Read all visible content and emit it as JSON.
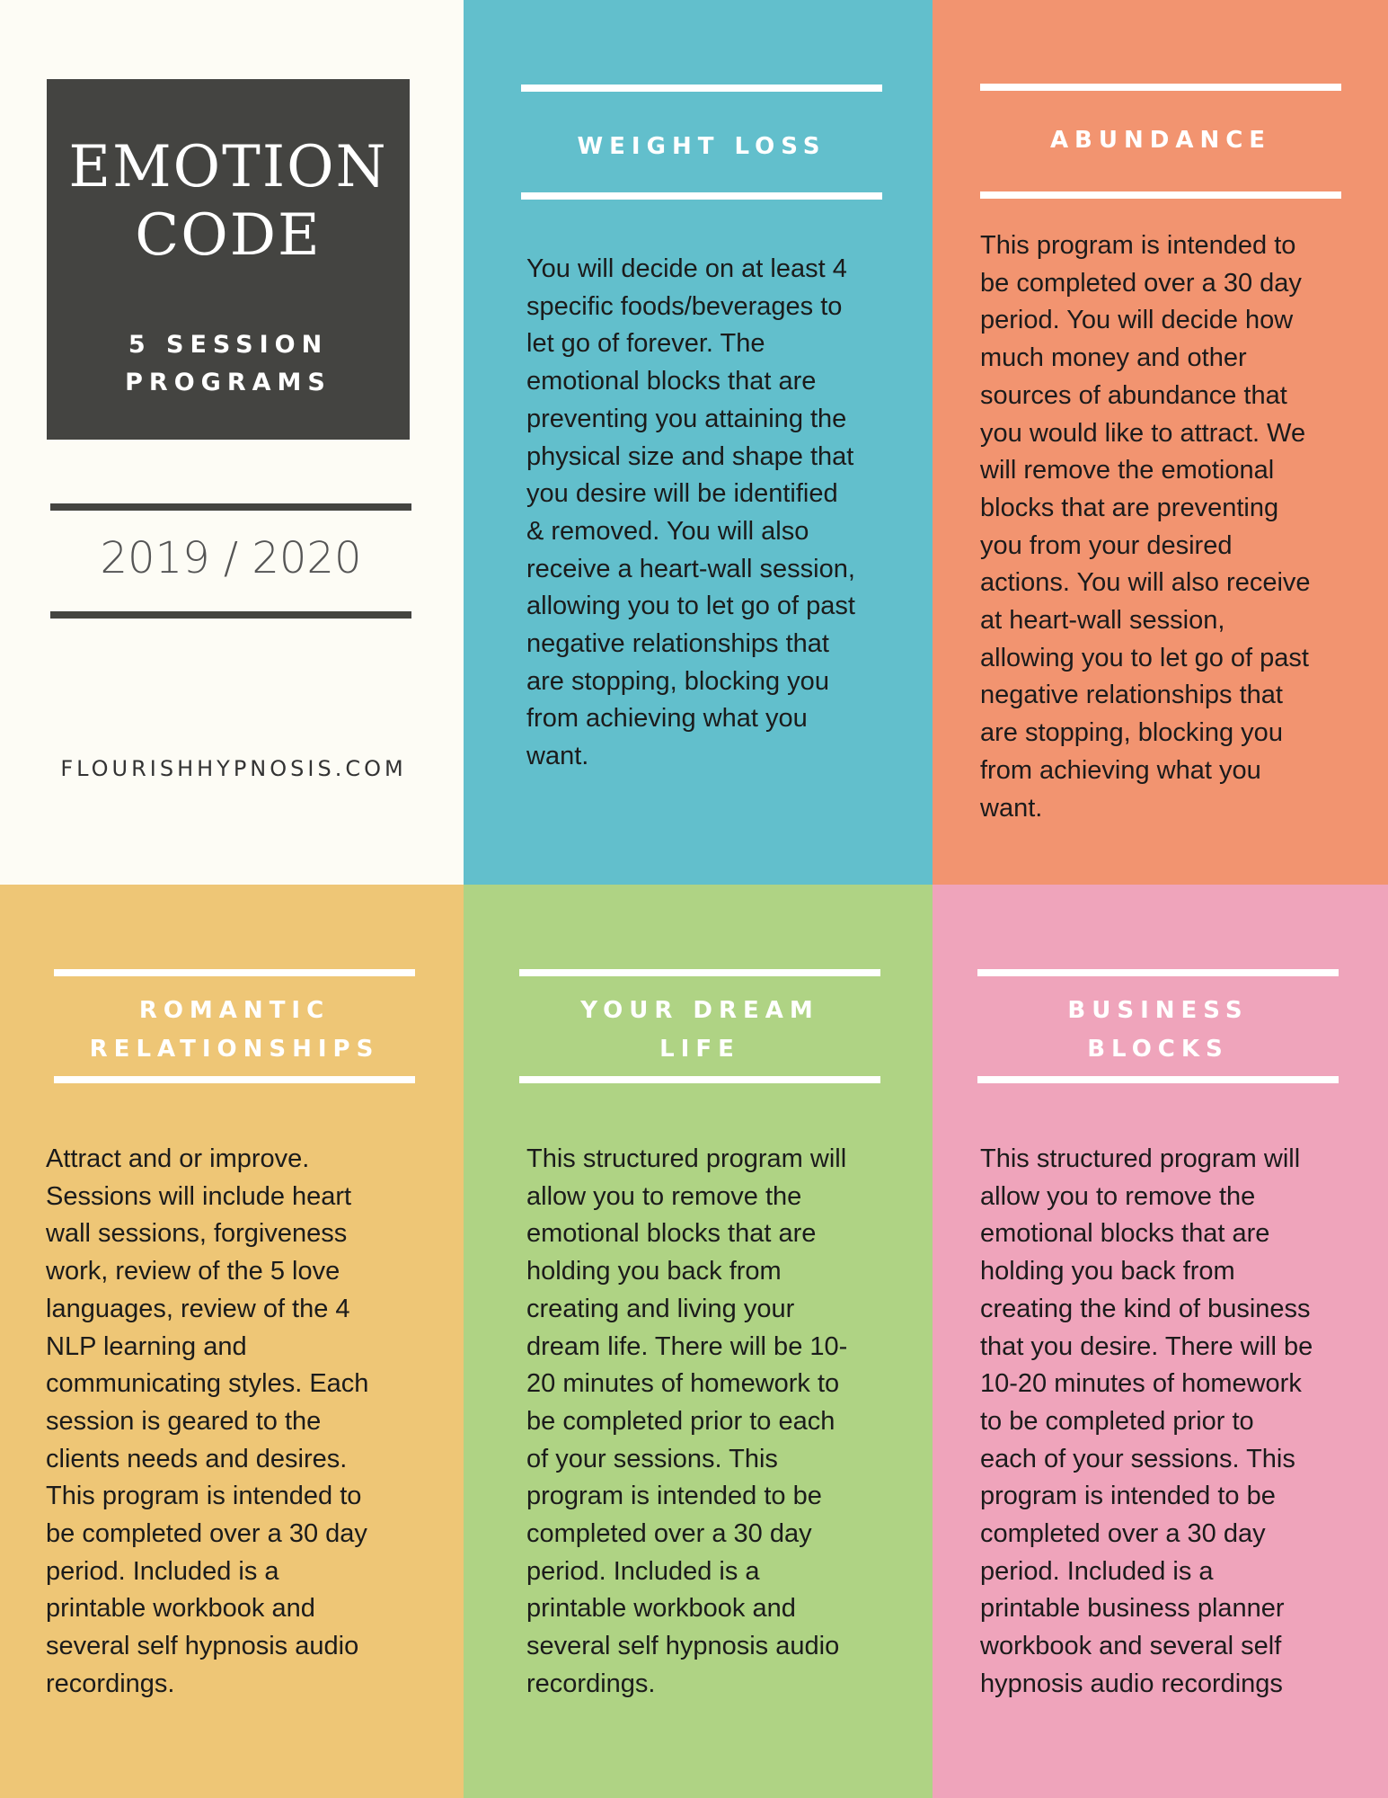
{
  "header": {
    "title_lines": [
      "EMOTION",
      "CODE"
    ],
    "subtitle_lines": [
      "5 SESSION",
      "PROGRAMS"
    ],
    "years": "2019 / 2020",
    "website": "FLOURISHHYPNOSIS.COM"
  },
  "panels": [
    {
      "title_lines": [
        "WEIGHT LOSS"
      ],
      "body_lines": [
        "You will decide on at least 4",
        "specific foods/beverages to",
        "let go of forever.  The",
        "emotional blocks that are",
        "preventing you attaining the",
        "physical size and shape that",
        "you desire will be identified",
        "& removed.  You will also",
        "receive a heart-wall session,",
        "allowing you to let go of past",
        "negative relationships that",
        "are stopping, blocking you",
        "from achieving what you",
        "want."
      ]
    },
    {
      "title_lines": [
        "ABUNDANCE"
      ],
      "body_lines": [
        "This program is intended to",
        "be completed over a 30 day",
        "period.  You will decide how",
        "much money and other",
        "sources of abundance that",
        "you would like to attract.  We",
        "will remove the emotional",
        "blocks that are preventing",
        "you from your desired",
        "actions.  You will also receive",
        "at heart-wall session,",
        "allowing you to let go of past",
        "negative relationships that",
        "are stopping, blocking you",
        "from achieving what you",
        "want."
      ]
    },
    {
      "title_lines": [
        "ROMANTIC",
        "RELATIONSHIPS"
      ],
      "body_lines": [
        "Attract and or improve.",
        "Sessions will include heart",
        "wall sessions, forgiveness",
        "work, review of the 5 love",
        "languages, review of the 4",
        "NLP learning and",
        "communicating styles. Each",
        "session is geared to the",
        "clients needs and desires.",
        "This program is intended to",
        "be completed over a 30 day",
        "period. Included is a",
        "printable workbook and",
        "several self hypnosis audio",
        "recordings."
      ]
    },
    {
      "title_lines": [
        "YOUR DREAM",
        "LIFE"
      ],
      "body_lines": [
        "This structured program will",
        "allow you to remove the",
        "emotional blocks that are",
        "holding you back from",
        "creating and living your",
        "dream life. There will be 10-",
        "20 minutes of homework to",
        "be completed prior to each",
        "of your sessions.  This",
        "program is intended to be",
        "completed over a 30 day",
        "period. Included is a",
        "printable workbook and",
        "several self hypnosis audio",
        "recordings."
      ]
    },
    {
      "title_lines": [
        "BUSINESS",
        "BLOCKS"
      ],
      "body_lines": [
        "This structured program will",
        "allow you to remove the",
        "emotional blocks that are",
        "holding you back from",
        "creating the kind of business",
        "that you desire. There will be",
        "10-20 minutes of homework",
        "to be completed prior to",
        "each of your sessions.  This",
        "program is intended to be",
        "completed over a 30 day",
        "period. Included is a",
        "printable business planner",
        "workbook and several self",
        "hypnosis audio recordings"
      ]
    }
  ]
}
